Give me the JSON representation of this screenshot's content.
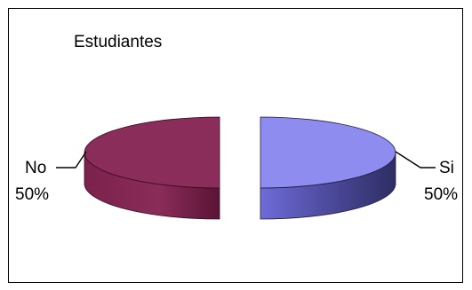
{
  "chart_data": {
    "type": "pie",
    "title": "Estudiantes",
    "categories": [
      "No",
      "Si"
    ],
    "values": [
      50,
      50
    ],
    "labels": [
      {
        "name": "No",
        "value": "50%"
      },
      {
        "name": "Si",
        "value": "50%"
      }
    ],
    "colors": {
      "No": "#8b2d5a",
      "Si": "#8f8cf0"
    },
    "exploded": true,
    "three_d": true,
    "legend": "none"
  }
}
